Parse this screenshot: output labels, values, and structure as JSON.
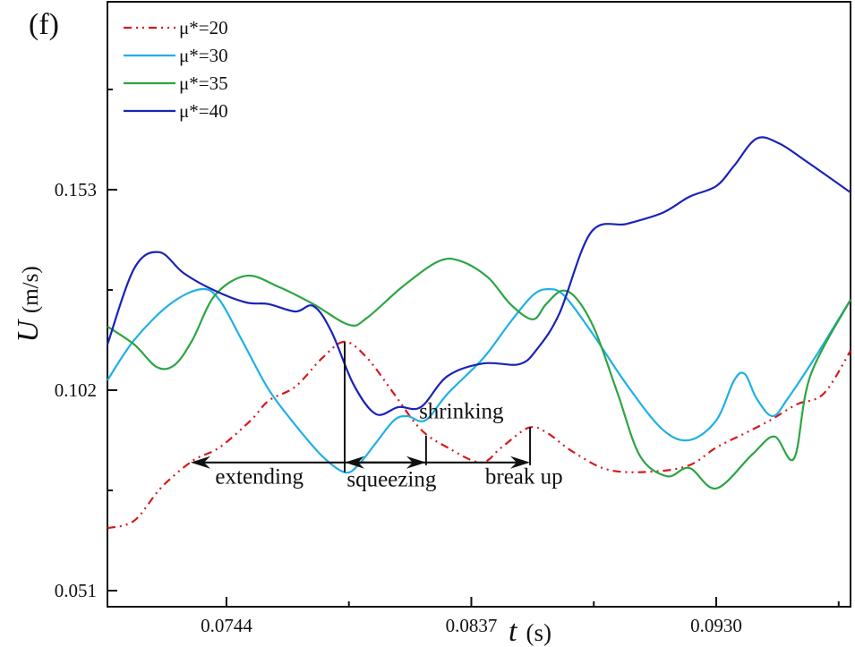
{
  "chart_data": {
    "type": "line",
    "panel_label": "(f)",
    "xlabel_symbol": "t",
    "xlabel_unit": "(s)",
    "ylabel_symbol": "U",
    "ylabel_unit": "(m/s)",
    "xlim": [
      0.06988,
      0.0981
    ],
    "ylim": [
      0.0469,
      0.2008
    ],
    "xticks": [
      0.0744,
      0.0837,
      0.093
    ],
    "xtick_labels": [
      "0.0744",
      "0.0837",
      "0.0930"
    ],
    "x_minor_ticks": [
      0.07905,
      0.08835,
      0.09765
    ],
    "yticks": [
      0.051,
      0.102,
      0.153
    ],
    "ytick_labels": [
      "0.051",
      "0.102",
      "0.153"
    ],
    "y_minor_ticks": [
      0.0765,
      0.1275,
      0.1785
    ],
    "grid": false,
    "legend_position": "top-left",
    "series": [
      {
        "name": "μ*=20",
        "color": "#d7191c",
        "style": "dash-dot-dot",
        "x": [
          0.06988,
          0.0709,
          0.07192,
          0.07311,
          0.07413,
          0.07532,
          0.076,
          0.07702,
          0.07804,
          0.07889,
          0.07974,
          0.08076,
          0.08178,
          0.0828,
          0.08406,
          0.08484,
          0.08586,
          0.08654,
          0.08756,
          0.08892,
          0.09062,
          0.09198,
          0.093,
          0.09402,
          0.09504,
          0.09606,
          0.09708,
          0.0981
        ],
        "y": [
          0.0669,
          0.0688,
          0.0772,
          0.084,
          0.0874,
          0.0943,
          0.0993,
          0.1029,
          0.1102,
          0.1143,
          0.1102,
          0.1011,
          0.092,
          0.0874,
          0.0836,
          0.0874,
          0.0924,
          0.0913,
          0.0863,
          0.0817,
          0.0813,
          0.0829,
          0.0874,
          0.0908,
          0.0943,
          0.0984,
          0.1011,
          0.112
        ]
      },
      {
        "name": "μ*=30",
        "color": "#1fb0e6",
        "style": "solid",
        "x": [
          0.06988,
          0.0709,
          0.07226,
          0.07345,
          0.07413,
          0.07498,
          0.076,
          0.07702,
          0.07804,
          0.07889,
          0.0794,
          0.08008,
          0.08076,
          0.08127,
          0.08195,
          0.0828,
          0.08416,
          0.08518,
          0.08603,
          0.08661,
          0.08722,
          0.08824,
          0.0896,
          0.09096,
          0.09198,
          0.093,
          0.09368,
          0.09409,
          0.09453,
          0.09514,
          0.09572,
          0.09674,
          0.0981
        ],
        "y": [
          0.1045,
          0.1148,
          0.1239,
          0.1277,
          0.125,
          0.1148,
          0.1022,
          0.0931,
          0.0852,
          0.0811,
          0.0829,
          0.0886,
          0.0943,
          0.0954,
          0.0943,
          0.1011,
          0.1102,
          0.1193,
          0.1261,
          0.1277,
          0.1261,
          0.117,
          0.1034,
          0.092,
          0.0893,
          0.0943,
          0.1045,
          0.1061,
          0.0999,
          0.0954,
          0.0999,
          0.1102,
          0.125
        ]
      },
      {
        "name": "μ*=35",
        "color": "#2ca543",
        "style": "solid",
        "x": [
          0.06988,
          0.0709,
          0.07175,
          0.07243,
          0.07311,
          0.07396,
          0.07515,
          0.07634,
          0.0777,
          0.07906,
          0.07974,
          0.0811,
          0.08246,
          0.08331,
          0.08433,
          0.08518,
          0.08603,
          0.08654,
          0.08715,
          0.08773,
          0.08841,
          0.08926,
          0.09011,
          0.09113,
          0.09198,
          0.093,
          0.09436,
          0.09521,
          0.09596,
          0.09657,
          0.0981
        ],
        "y": [
          0.1182,
          0.1136,
          0.1079,
          0.1084,
          0.1148,
          0.1261,
          0.1311,
          0.1284,
          0.1239,
          0.1186,
          0.1204,
          0.1284,
          0.1348,
          0.1348,
          0.1307,
          0.1239,
          0.12,
          0.1239,
          0.1273,
          0.125,
          0.117,
          0.1011,
          0.0852,
          0.0801,
          0.0822,
          0.077,
          0.0856,
          0.0902,
          0.0847,
          0.1056,
          0.125
        ]
      },
      {
        "name": "μ*=40",
        "color": "#1a23b8",
        "style": "solid",
        "x": [
          0.06988,
          0.0709,
          0.07185,
          0.07277,
          0.07396,
          0.07515,
          0.076,
          0.07702,
          0.0777,
          0.07838,
          0.07923,
          0.08008,
          0.08093,
          0.08178,
          0.0828,
          0.08416,
          0.08552,
          0.0862,
          0.08705,
          0.08824,
          0.0896,
          0.09096,
          0.09198,
          0.093,
          0.09368,
          0.09453,
          0.09538,
          0.0964,
          0.0981
        ],
        "y": [
          0.1136,
          0.133,
          0.1371,
          0.1318,
          0.1273,
          0.1243,
          0.1239,
          0.122,
          0.1234,
          0.117,
          0.1034,
          0.0959,
          0.0977,
          0.0977,
          0.1056,
          0.1088,
          0.1086,
          0.1125,
          0.1216,
          0.1421,
          0.1443,
          0.1471,
          0.1512,
          0.1539,
          0.1591,
          0.166,
          0.1648,
          0.1603,
          0.1523
        ]
      }
    ],
    "annotations": {
      "arrow_level": 0.0836,
      "markers": [
        {
          "x": 0.07889,
          "y_top": 0.1143,
          "y_bottom": 0.0811
        },
        {
          "x": 0.08198,
          "y_top": 0.0904,
          "y_bottom": 0.0829
        },
        {
          "x": 0.08593,
          "y_top": 0.0926,
          "y_bottom": 0.0829
        }
      ],
      "arrows": [
        {
          "from": 0.07889,
          "to": 0.07304
        },
        {
          "from": 0.07889,
          "to": 0.08198
        },
        {
          "from": 0.08198,
          "to": 0.07889
        },
        {
          "from": 0.08198,
          "to": 0.08593
        }
      ],
      "labels": [
        {
          "text": "extending",
          "x": 0.07565,
          "y": 0.0782
        },
        {
          "text": "squeezing",
          "x": 0.08067,
          "y": 0.0775
        },
        {
          "text": "shrinking",
          "x": 0.08332,
          "y": 0.0948
        },
        {
          "text": "break up",
          "x": 0.0857,
          "y": 0.0782
        }
      ]
    }
  }
}
